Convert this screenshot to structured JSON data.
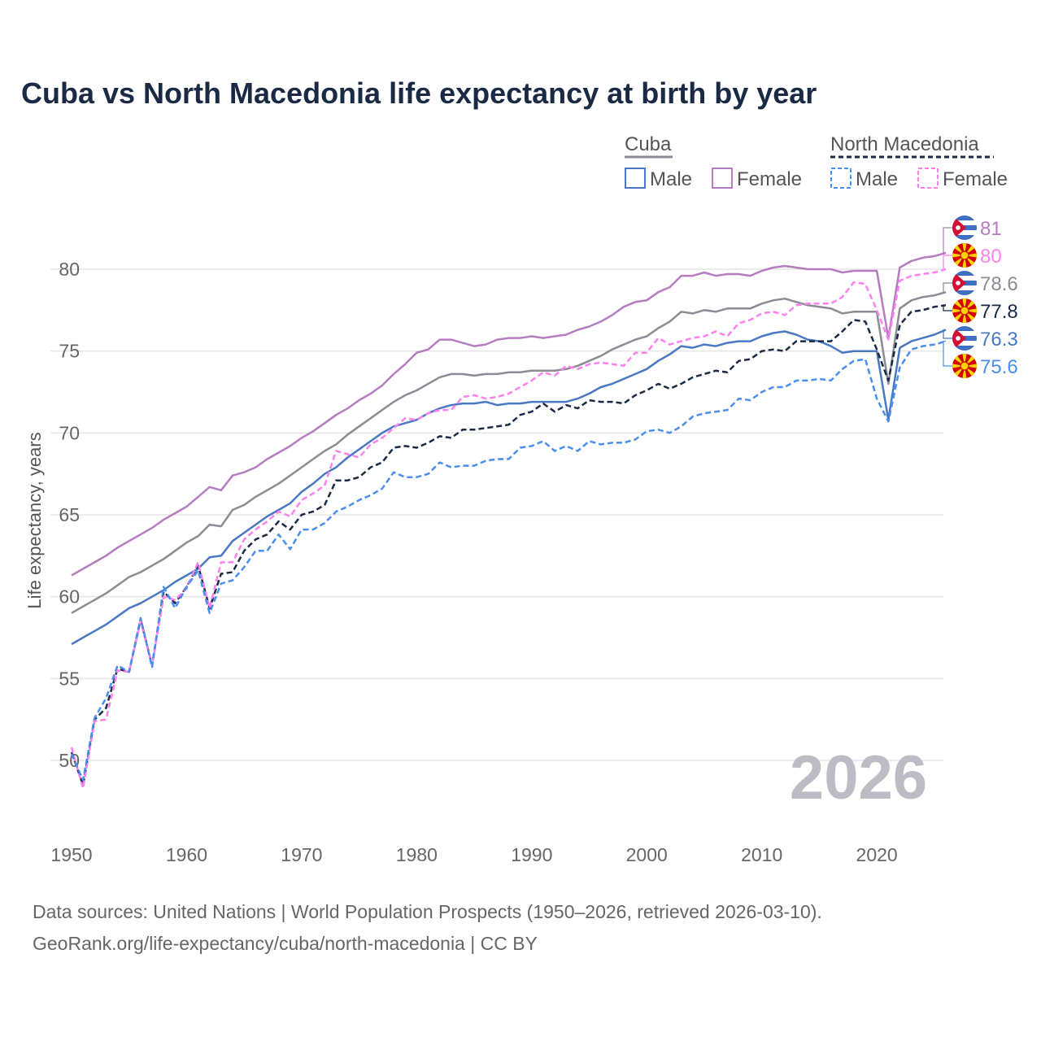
{
  "title": "Cuba vs North Macedonia life expectancy at birth by year",
  "legend": {
    "groups": [
      {
        "name": "Cuba",
        "items": [
          "Male",
          "Female"
        ]
      },
      {
        "name": "North Macedonia",
        "items": [
          "Male",
          "Female"
        ]
      }
    ]
  },
  "watermark_year": "2026",
  "source_line1": "Data sources: United Nations | World Population Prospects (1950–2026, retrieved 2026-03-10).",
  "source_line2": "GeoRank.org/life-expectancy/cuba/north-macedonia | CC BY",
  "chart_data": {
    "type": "line",
    "title": "Cuba vs North Macedonia life expectancy at birth by year",
    "xlabel": "",
    "ylabel": "Life expectancy, years",
    "xlim": [
      1950,
      2026
    ],
    "ylim": [
      47.5,
      83
    ],
    "xticks": [
      1950,
      1960,
      1970,
      1980,
      1990,
      2000,
      2010,
      2020
    ],
    "yticks": [
      50,
      55,
      60,
      65,
      70,
      75,
      80
    ],
    "grid": true,
    "legend_position": "top-right",
    "x_start": 1950,
    "series": [
      {
        "name": "Cuba Female",
        "country": "Cuba",
        "flag": "cuba",
        "color": "#b57cbf",
        "dashed": false,
        "end_label": "81",
        "values": [
          61.3,
          61.7,
          62.1,
          62.5,
          63.0,
          63.4,
          63.8,
          64.2,
          64.7,
          65.1,
          65.5,
          66.1,
          66.7,
          66.5,
          67.4,
          67.6,
          67.9,
          68.4,
          68.8,
          69.2,
          69.7,
          70.1,
          70.6,
          71.1,
          71.5,
          72.0,
          72.4,
          72.9,
          73.6,
          74.2,
          74.9,
          75.1,
          75.7,
          75.7,
          75.5,
          75.3,
          75.4,
          75.7,
          75.8,
          75.8,
          75.9,
          75.8,
          75.9,
          76.0,
          76.3,
          76.5,
          76.8,
          77.2,
          77.7,
          78.0,
          78.1,
          78.6,
          78.9,
          79.6,
          79.6,
          79.8,
          79.6,
          79.7,
          79.7,
          79.6,
          79.9,
          80.1,
          80.2,
          80.1,
          80.0,
          80.0,
          80.0,
          79.8,
          79.9,
          79.9,
          79.9,
          75.8,
          80.1,
          80.5,
          80.7,
          80.8,
          81.0
        ]
      },
      {
        "name": "North Macedonia Female",
        "country": "North Macedonia",
        "flag": "north-macedonia",
        "color": "#ff80ee",
        "dashed": true,
        "end_label": "80",
        "values": [
          50.8,
          48.3,
          52.4,
          52.5,
          55.5,
          55.4,
          58.5,
          55.8,
          60.0,
          59.8,
          60.5,
          62.1,
          59.3,
          62.1,
          62.1,
          63.5,
          64.1,
          64.6,
          65.2,
          64.9,
          65.9,
          66.3,
          66.8,
          68.9,
          68.7,
          68.5,
          69.3,
          69.7,
          70.3,
          70.9,
          70.8,
          71.2,
          71.4,
          71.4,
          72.2,
          72.3,
          72.1,
          72.2,
          72.4,
          72.8,
          73.2,
          73.7,
          73.5,
          74.1,
          73.9,
          74.2,
          74.3,
          74.2,
          74.1,
          74.9,
          74.9,
          75.8,
          75.4,
          75.6,
          75.8,
          75.9,
          76.2,
          75.9,
          76.7,
          76.9,
          77.3,
          77.4,
          77.2,
          77.8,
          77.9,
          77.9,
          77.9,
          78.3,
          79.2,
          79.1,
          77.5,
          75.7,
          79.3,
          79.6,
          79.7,
          79.8,
          80.0
        ]
      },
      {
        "name": "Cuba",
        "country": "Cuba",
        "flag": "cuba",
        "color": "#8c8c94",
        "dashed": false,
        "end_label": "78.6",
        "values": [
          59.0,
          59.4,
          59.8,
          60.2,
          60.7,
          61.2,
          61.5,
          61.9,
          62.3,
          62.8,
          63.3,
          63.7,
          64.4,
          64.3,
          65.3,
          65.6,
          66.1,
          66.5,
          66.9,
          67.4,
          67.9,
          68.4,
          68.9,
          69.3,
          69.9,
          70.4,
          70.9,
          71.4,
          71.9,
          72.3,
          72.6,
          73.0,
          73.4,
          73.6,
          73.6,
          73.5,
          73.6,
          73.6,
          73.7,
          73.7,
          73.8,
          73.8,
          73.8,
          73.9,
          74.1,
          74.4,
          74.7,
          75.1,
          75.4,
          75.7,
          75.9,
          76.4,
          76.8,
          77.4,
          77.3,
          77.5,
          77.4,
          77.6,
          77.6,
          77.6,
          77.9,
          78.1,
          78.2,
          78.0,
          77.8,
          77.7,
          77.6,
          77.3,
          77.4,
          77.4,
          77.4,
          73.0,
          77.6,
          78.1,
          78.3,
          78.4,
          78.6
        ]
      },
      {
        "name": "North Macedonia",
        "country": "North Macedonia",
        "flag": "north-macedonia",
        "color": "#1b2a44",
        "dashed": true,
        "end_label": "77.8",
        "values": [
          50.5,
          48.5,
          52.5,
          53.2,
          55.6,
          55.4,
          58.6,
          55.8,
          60.3,
          59.6,
          60.6,
          61.9,
          59.3,
          61.4,
          61.5,
          62.8,
          63.5,
          63.8,
          64.6,
          64.1,
          65.0,
          65.2,
          65.6,
          67.1,
          67.1,
          67.3,
          67.9,
          68.2,
          69.1,
          69.2,
          69.1,
          69.4,
          69.8,
          69.7,
          70.2,
          70.2,
          70.3,
          70.4,
          70.5,
          71.1,
          71.3,
          71.8,
          71.3,
          71.7,
          71.5,
          72.0,
          71.9,
          71.9,
          71.8,
          72.3,
          72.6,
          73.0,
          72.7,
          73.0,
          73.4,
          73.6,
          73.8,
          73.7,
          74.4,
          74.5,
          75.0,
          75.1,
          75.0,
          75.6,
          75.6,
          75.6,
          75.6,
          76.2,
          76.9,
          76.8,
          75.1,
          73.2,
          76.6,
          77.4,
          77.5,
          77.7,
          77.8
        ]
      },
      {
        "name": "Cuba Male",
        "country": "Cuba",
        "flag": "cuba",
        "color": "#4a78c2",
        "dashed": false,
        "end_label": "76.3",
        "values": [
          57.1,
          57.5,
          57.9,
          58.3,
          58.8,
          59.3,
          59.6,
          60.0,
          60.4,
          60.9,
          61.3,
          61.7,
          62.4,
          62.5,
          63.4,
          63.9,
          64.4,
          64.9,
          65.3,
          65.7,
          66.4,
          66.9,
          67.5,
          67.9,
          68.5,
          69.0,
          69.5,
          70.0,
          70.4,
          70.6,
          70.8,
          71.2,
          71.5,
          71.7,
          71.8,
          71.8,
          71.9,
          71.7,
          71.8,
          71.8,
          71.9,
          71.9,
          71.9,
          71.9,
          72.1,
          72.4,
          72.8,
          73.0,
          73.3,
          73.6,
          73.9,
          74.4,
          74.8,
          75.3,
          75.2,
          75.4,
          75.3,
          75.5,
          75.6,
          75.6,
          75.9,
          76.1,
          76.2,
          76.0,
          75.7,
          75.6,
          75.3,
          74.9,
          75.0,
          75.0,
          75.0,
          70.8,
          75.2,
          75.6,
          75.8,
          76.0,
          76.3
        ]
      },
      {
        "name": "North Macedonia Male",
        "country": "North Macedonia",
        "flag": "north-macedonia",
        "color": "#4a8ef0",
        "dashed": true,
        "end_label": "75.6",
        "values": [
          50.4,
          48.8,
          52.6,
          53.8,
          55.8,
          55.4,
          58.7,
          55.7,
          60.6,
          59.3,
          60.6,
          61.6,
          59.0,
          60.8,
          61.0,
          61.8,
          62.8,
          62.8,
          63.8,
          62.9,
          64.1,
          64.1,
          64.5,
          65.2,
          65.5,
          65.9,
          66.2,
          66.6,
          67.6,
          67.3,
          67.3,
          67.5,
          68.2,
          67.9,
          68.0,
          68.0,
          68.3,
          68.4,
          68.4,
          69.1,
          69.2,
          69.5,
          68.9,
          69.2,
          68.9,
          69.5,
          69.3,
          69.4,
          69.4,
          69.6,
          70.1,
          70.2,
          70.0,
          70.4,
          71.0,
          71.2,
          71.3,
          71.4,
          72.1,
          72.0,
          72.5,
          72.8,
          72.8,
          73.2,
          73.2,
          73.3,
          73.2,
          73.9,
          74.4,
          74.5,
          72.1,
          70.7,
          74.0,
          75.1,
          75.3,
          75.4,
          75.6
        ]
      }
    ]
  }
}
